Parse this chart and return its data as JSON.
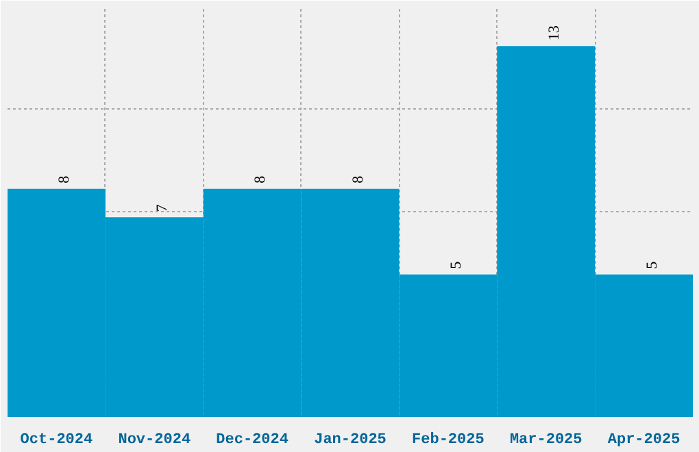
{
  "chart_data": {
    "type": "bar",
    "categories": [
      "Oct-2024",
      "Nov-2024",
      "Dec-2024",
      "Jan-2025",
      "Feb-2025",
      "Mar-2025",
      "Apr-2025"
    ],
    "values": [
      8,
      7,
      8,
      8,
      5,
      13,
      5
    ],
    "color": "#0099cc",
    "ylim": [
      0,
      14.4
    ],
    "tick_labels": "x",
    "grid": true,
    "data_labels": true
  }
}
